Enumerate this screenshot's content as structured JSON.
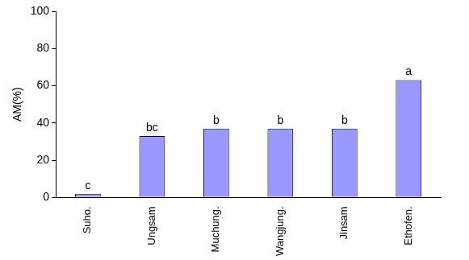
{
  "chart_data": {
    "type": "bar",
    "y_label": "AM(%)",
    "categories": [
      "Suho.",
      "Ungsam",
      "Muchung.",
      "Wangjung.",
      "Jinsam",
      "Ethofen."
    ],
    "values": [
      2,
      33,
      37,
      37,
      37,
      63
    ],
    "annotations": [
      "c",
      "bc",
      "b",
      "b",
      "b",
      "a"
    ],
    "color": "#9999ff",
    "ylim": [
      0,
      100
    ],
    "yticks": [
      0,
      20,
      40,
      60,
      80,
      100
    ],
    "grid": false
  }
}
